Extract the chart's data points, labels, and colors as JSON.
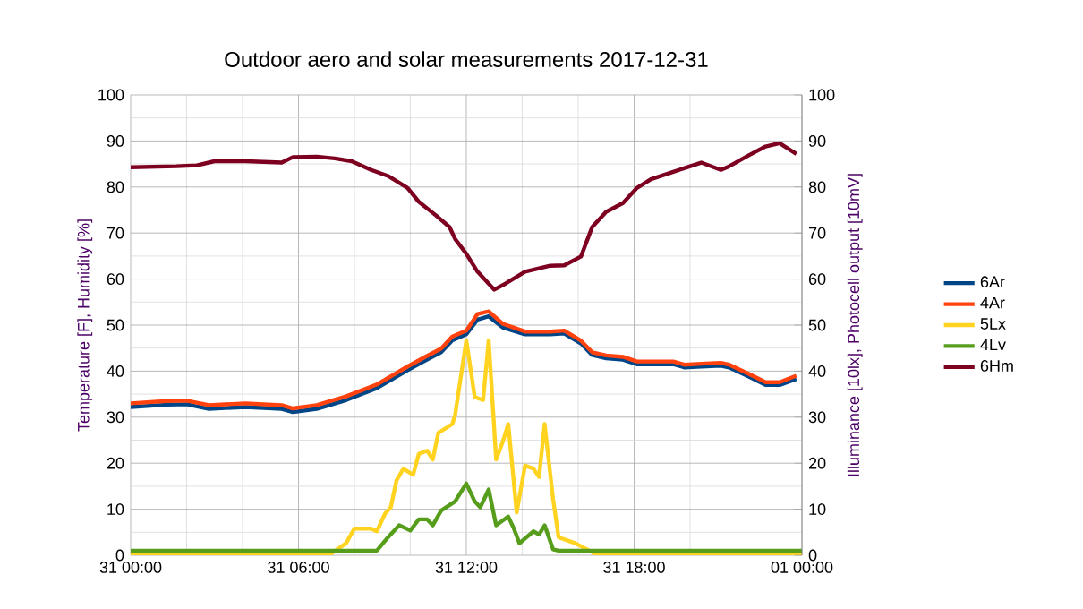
{
  "chart_data": {
    "type": "line",
    "title": "Outdoor aero and solar measurements 2017-12-31",
    "ylabel": "Temperature [F], Humidity [%]",
    "y2label": "Illuminance [10lx], Photocell output [10mV]",
    "xlim": [
      "2017-12-31T00:00",
      "2018-01-01T00:00"
    ],
    "ylim": [
      0,
      100
    ],
    "y2lim": [
      0,
      100
    ],
    "xticks": [
      {
        "value": "2017-12-31T00:00",
        "label": "31 00:00"
      },
      {
        "value": "2017-12-31T02:00",
        "label": null
      },
      {
        "value": "2017-12-31T04:00",
        "label": null
      },
      {
        "value": "2017-12-31T06:00",
        "label": "31 06:00"
      },
      {
        "value": "2017-12-31T08:00",
        "label": null
      },
      {
        "value": "2017-12-31T10:00",
        "label": null
      },
      {
        "value": "2017-12-31T12:00",
        "label": "31 12:00"
      },
      {
        "value": "2017-12-31T14:00",
        "label": null
      },
      {
        "value": "2017-12-31T16:00",
        "label": null
      },
      {
        "value": "2017-12-31T18:00",
        "label": "31 18:00"
      },
      {
        "value": "2017-12-31T20:00",
        "label": null
      },
      {
        "value": "2017-12-31T22:00",
        "label": null
      },
      {
        "value": "2018-01-01T00:00",
        "label": "01 00:00"
      }
    ],
    "yticks": [
      0,
      {
        "value": 5,
        "label": null
      },
      10,
      {
        "value": 15,
        "label": null
      },
      20,
      {
        "value": 25,
        "label": null
      },
      30,
      {
        "value": 35,
        "label": null
      },
      40,
      {
        "value": 45,
        "label": null
      },
      50,
      {
        "value": 55,
        "label": null
      },
      60,
      {
        "value": 65,
        "label": null
      },
      70,
      {
        "value": 75,
        "label": null
      },
      80,
      {
        "value": 85,
        "label": null
      },
      90,
      {
        "value": 95,
        "label": null
      },
      100
    ],
    "y2ticks": [
      0,
      10,
      20,
      30,
      40,
      50,
      60,
      70,
      80,
      90,
      100
    ],
    "grid": true,
    "legend": "right",
    "marker": "none",
    "line_style": "solid",
    "x": [
      "2017-12-31T00:00",
      "2017-12-31T01:18",
      "2017-12-31T02:00",
      "2017-12-31T02:48",
      "2017-12-31T04:06",
      "2017-12-31T05:24",
      "2017-12-31T05:48",
      "2017-12-31T06:39",
      "2017-12-31T07:42",
      "2017-12-31T08:48",
      "2017-12-31T09:54",
      "2017-12-31T10:30",
      "2017-12-31T11:06",
      "2017-12-31T11:30",
      "2017-12-31T12:00",
      "2017-12-31T12:24",
      "2017-12-31T12:48",
      "2017-12-31T13:18",
      "2017-12-31T14:06",
      "2017-12-31T15:00",
      "2017-12-31T15:30",
      "2017-12-31T16:06",
      "2017-12-31T16:30",
      "2017-12-31T17:00",
      "2017-12-31T17:36",
      "2017-12-31T18:06",
      "2017-12-31T19:24",
      "2017-12-31T19:48",
      "2017-12-31T20:24",
      "2017-12-31T21:06",
      "2017-12-31T21:24",
      "2017-12-31T22:06",
      "2017-12-31T22:42",
      "2017-12-31T23:12",
      "2017-12-31T23:48"
    ],
    "series": [
      {
        "name": "6Ar",
        "color": "#004586",
        "values": [
          32.2,
          32.7,
          32.8,
          31.8,
          32.2,
          31.8,
          31.1,
          31.8,
          33.7,
          36.3,
          40.2,
          42.2,
          44.1,
          46.7,
          48.0,
          51.2,
          51.9,
          49.5,
          48.0,
          48.0,
          48.2,
          46.0,
          43.5,
          42.8,
          42.5,
          41.5,
          41.5,
          40.8,
          41.0,
          41.2,
          40.8,
          38.8,
          37.0,
          37.0,
          38.3
        ]
      },
      {
        "name": "4Ar",
        "color": "#ff420e",
        "values": [
          33.0,
          33.5,
          33.6,
          32.6,
          33.0,
          32.6,
          31.9,
          32.6,
          34.5,
          37.1,
          41.0,
          43.0,
          44.9,
          47.5,
          48.8,
          52.4,
          53.0,
          50.3,
          48.6,
          48.6,
          48.8,
          46.6,
          44.1,
          43.4,
          43.1,
          42.1,
          42.1,
          41.4,
          41.6,
          41.8,
          41.4,
          39.4,
          37.6,
          37.6,
          39.0
        ]
      },
      {
        "name": "5Lx",
        "color": "#ffd320",
        "x": [
          "2017-12-31T00:00",
          "2017-12-31T07:05",
          "2017-12-31T07:42",
          "2017-12-31T08:00",
          "2017-12-31T08:36",
          "2017-12-31T08:48",
          "2017-12-31T09:06",
          "2017-12-31T09:18",
          "2017-12-31T09:30",
          "2017-12-31T09:45",
          "2017-12-31T10:06",
          "2017-12-31T10:18",
          "2017-12-31T10:36",
          "2017-12-31T10:48",
          "2017-12-31T11:00",
          "2017-12-31T11:30",
          "2017-12-31T11:36",
          "2017-12-31T12:00",
          "2017-12-31T12:18",
          "2017-12-31T12:36",
          "2017-12-31T12:48",
          "2017-12-31T13:04",
          "2017-12-31T13:18",
          "2017-12-31T13:30",
          "2017-12-31T13:48",
          "2017-12-31T14:06",
          "2017-12-31T14:24",
          "2017-12-31T14:36",
          "2017-12-31T14:48",
          "2017-12-31T15:06",
          "2017-12-31T15:18",
          "2017-12-31T15:54",
          "2017-12-31T16:18",
          "2017-12-31T16:42",
          "2018-01-01T00:00"
        ],
        "values": [
          0,
          0,
          2.6,
          5.8,
          5.8,
          5.2,
          9.1,
          10.4,
          16.2,
          18.8,
          17.5,
          22,
          22.7,
          20.8,
          26.6,
          28.5,
          30.5,
          46.7,
          34.4,
          33.7,
          46.7,
          20.8,
          24.6,
          28.5,
          9.3,
          19.5,
          18.8,
          17,
          28.5,
          12.3,
          3.9,
          2.6,
          1.3,
          0,
          0
        ]
      },
      {
        "name": "4Lv",
        "color": "#579d1c",
        "x": [
          "2017-12-31T00:00",
          "2017-12-31T08:48",
          "2017-12-31T09:12",
          "2017-12-31T09:36",
          "2017-12-31T10:00",
          "2017-12-31T10:18",
          "2017-12-31T10:36",
          "2017-12-31T10:48",
          "2017-12-31T11:06",
          "2017-12-31T11:36",
          "2017-12-31T12:00",
          "2017-12-31T12:18",
          "2017-12-31T12:30",
          "2017-12-31T12:48",
          "2017-12-31T13:04",
          "2017-12-31T13:30",
          "2017-12-31T13:42",
          "2017-12-31T13:54",
          "2017-12-31T14:24",
          "2017-12-31T14:36",
          "2017-12-31T14:48",
          "2017-12-31T15:06",
          "2017-12-31T15:18",
          "2018-01-01T00:00"
        ],
        "values": [
          1,
          1,
          3.9,
          6.5,
          5.4,
          7.8,
          7.8,
          6.5,
          9.7,
          11.7,
          15.6,
          11.7,
          10.4,
          14.3,
          6.5,
          8.4,
          5.8,
          2.6,
          5.2,
          4.5,
          6.5,
          1.3,
          1,
          1
        ]
      },
      {
        "name": "6Hm",
        "color": "#7e0021",
        "x": [
          "2017-12-31T00:00",
          "2017-12-31T01:38",
          "2017-12-31T02:22",
          "2017-12-31T03:00",
          "2017-12-31T04:06",
          "2017-12-31T05:24",
          "2017-12-31T05:48",
          "2017-12-31T06:39",
          "2017-12-31T07:18",
          "2017-12-31T07:54",
          "2017-12-31T08:36",
          "2017-12-31T09:12",
          "2017-12-31T09:54",
          "2017-12-31T10:18",
          "2017-12-31T10:54",
          "2017-12-31T11:24",
          "2017-12-31T11:36",
          "2017-12-31T12:00",
          "2017-12-31T12:24",
          "2017-12-31T13:00",
          "2017-12-31T13:24",
          "2017-12-31T14:06",
          "2017-12-31T15:00",
          "2017-12-31T15:30",
          "2017-12-31T16:06",
          "2017-12-31T16:30",
          "2017-12-31T17:00",
          "2017-12-31T17:36",
          "2017-12-31T18:06",
          "2017-12-31T18:36",
          "2017-12-31T19:24",
          "2017-12-31T20:24",
          "2017-12-31T21:06",
          "2017-12-31T21:24",
          "2017-12-31T22:06",
          "2017-12-31T22:42",
          "2017-12-31T23:12",
          "2017-12-31T23:48"
        ],
        "values": [
          84.3,
          84.5,
          84.7,
          85.6,
          85.6,
          85.3,
          86.5,
          86.6,
          86.2,
          85.6,
          83.7,
          82.4,
          79.8,
          76.8,
          73.9,
          71.3,
          68.7,
          65.5,
          61.6,
          57.7,
          59.0,
          61.6,
          62.9,
          63.0,
          64.9,
          71.3,
          74.6,
          76.5,
          79.8,
          81.7,
          83.3,
          85.3,
          83.7,
          84.5,
          86.9,
          88.8,
          89.5,
          87.2
        ]
      }
    ]
  }
}
